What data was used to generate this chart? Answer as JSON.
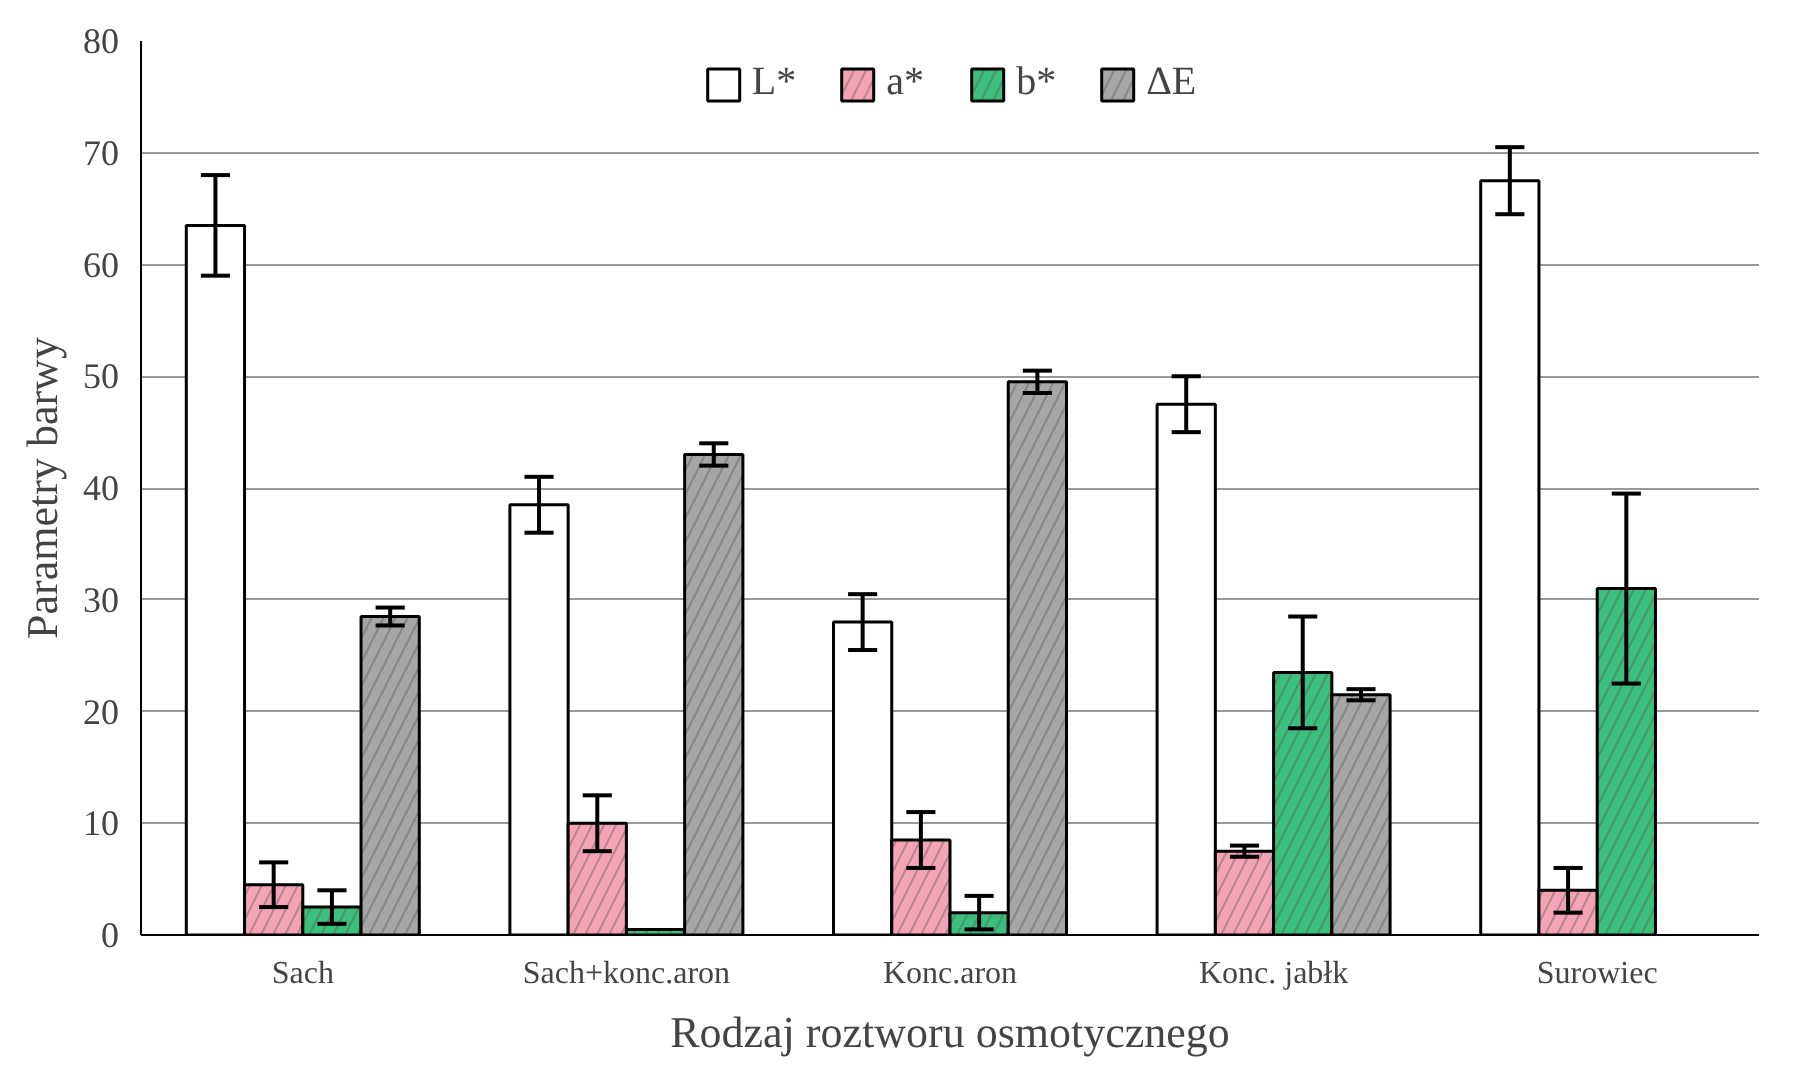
{
  "chart_data": {
    "type": "bar",
    "xlabel": "Rodzaj roztworu osmotycznego",
    "ylabel": "Parametry barwy",
    "categories": [
      "Sach",
      "Sach+konc.aron",
      "Konc.aron",
      "Konc. jabłk",
      "Surowiec"
    ],
    "series": [
      {
        "name": "L*",
        "color": "#ffffff",
        "values": [
          63.5,
          38.5,
          28,
          47.5,
          67.5
        ],
        "errors": [
          4.5,
          2.5,
          2.5,
          2.5,
          3
        ]
      },
      {
        "name": "a*",
        "color": "#f4a3b6",
        "values": [
          4.5,
          10,
          8.5,
          7.5,
          4
        ],
        "errors": [
          2,
          2.5,
          2.5,
          0.5,
          2
        ]
      },
      {
        "name": "b*",
        "color": "#3cbf7c",
        "values": [
          2.5,
          0.5,
          2,
          23.5,
          31
        ],
        "errors": [
          1.5,
          null,
          1.5,
          5,
          8.5
        ]
      },
      {
        "name": "ΔE",
        "color": "#a6a6a6",
        "values": [
          28.5,
          43,
          49.5,
          21.5,
          null
        ],
        "errors": [
          0.8,
          1,
          1,
          0.5,
          null
        ]
      }
    ],
    "ylim": [
      0,
      80
    ],
    "yticks": [
      0,
      10,
      20,
      30,
      40,
      50,
      60,
      70,
      80
    ],
    "grid": "y",
    "legend": "top"
  }
}
